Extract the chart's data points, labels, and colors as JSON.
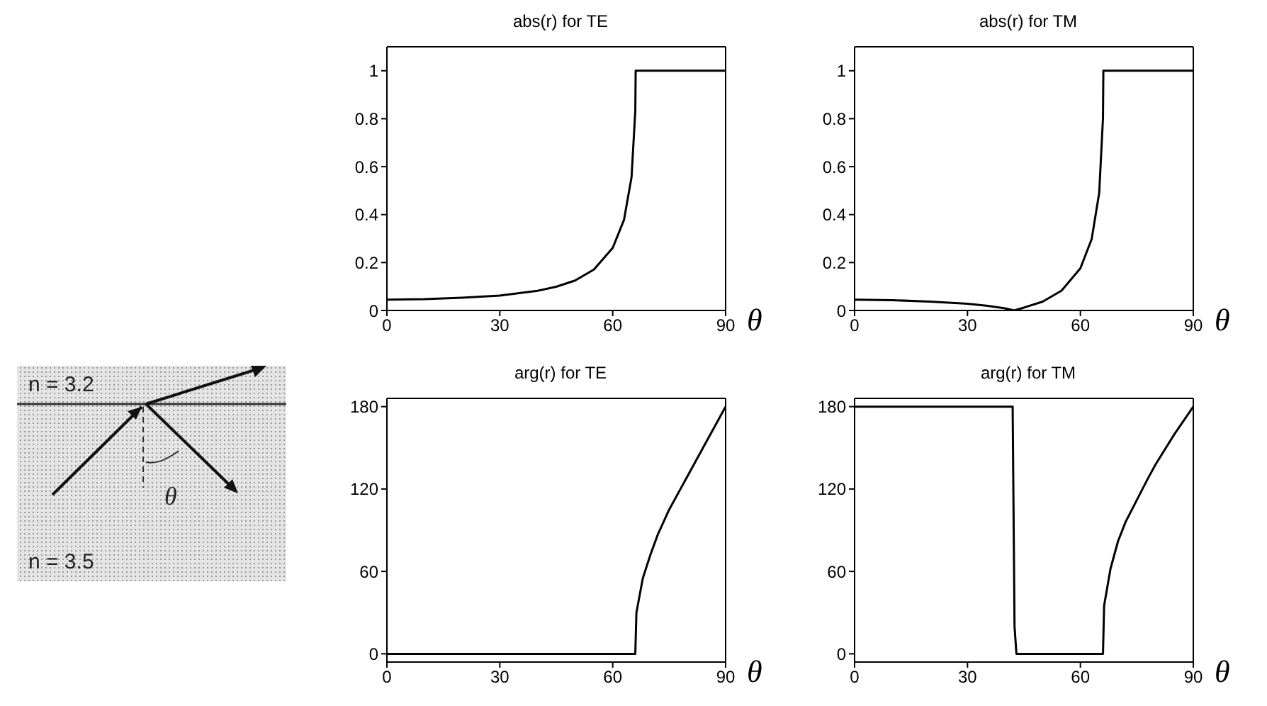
{
  "chart_data": [
    {
      "type": "other",
      "annotations": [
        "n = 3.2",
        "n = 3.5",
        "θ"
      ]
    },
    {
      "type": "line",
      "title": "abs(r) for TE",
      "xlabel": "θ",
      "color": "#000000",
      "xlim": [
        0,
        90
      ],
      "xticks": [
        0,
        30,
        60,
        90
      ],
      "ylim": [
        0,
        1.1
      ],
      "yticks": [
        0,
        0.2,
        0.4,
        0.6,
        0.8,
        1
      ],
      "grid": false,
      "legend": false,
      "x": [
        0,
        10,
        20,
        30,
        40,
        45,
        50,
        55,
        60,
        63,
        65,
        66,
        66.1,
        70,
        80,
        90
      ],
      "values": [
        0.045,
        0.047,
        0.053,
        0.062,
        0.082,
        0.099,
        0.125,
        0.171,
        0.261,
        0.378,
        0.556,
        0.832,
        1,
        1,
        1,
        1
      ]
    },
    {
      "type": "line",
      "title": "abs(r) for TM",
      "xlabel": "θ",
      "color": "#000000",
      "xlim": [
        0,
        90
      ],
      "xticks": [
        0,
        30,
        60,
        90
      ],
      "ylim": [
        0,
        1.1
      ],
      "yticks": [
        0,
        0.2,
        0.4,
        0.6,
        0.8,
        1
      ],
      "grid": false,
      "legend": false,
      "x": [
        0,
        10,
        20,
        30,
        35,
        40,
        42.4,
        45,
        50,
        55,
        60,
        63,
        65,
        66,
        66.1,
        70,
        80,
        90
      ],
      "values": [
        0.045,
        0.043,
        0.037,
        0.028,
        0.02,
        0.009,
        0,
        0.012,
        0.037,
        0.083,
        0.176,
        0.298,
        0.491,
        0.802,
        1,
        1,
        1,
        1
      ]
    },
    {
      "type": "line",
      "title": "arg(r) for TE",
      "xlabel": "θ",
      "color": "#000000",
      "xlim": [
        0,
        90
      ],
      "xticks": [
        0,
        30,
        60,
        90
      ],
      "ylim": [
        -6,
        186
      ],
      "yticks": [
        0,
        60,
        120,
        180
      ],
      "grid": false,
      "legend": false,
      "x": [
        0,
        30,
        60,
        66,
        66.3,
        68,
        70,
        72,
        75,
        78,
        80,
        85,
        90
      ],
      "values": [
        0,
        0,
        0,
        0,
        30,
        55,
        72,
        87,
        105,
        120,
        130,
        155,
        180
      ]
    },
    {
      "type": "line",
      "title": "arg(r) for TM",
      "xlabel": "θ",
      "color": "#000000",
      "xlim": [
        0,
        90
      ],
      "xticks": [
        0,
        30,
        60,
        90
      ],
      "ylim": [
        -6,
        186
      ],
      "yticks": [
        0,
        60,
        120,
        180
      ],
      "grid": false,
      "legend": false,
      "x": [
        0,
        20,
        42,
        42.5,
        43,
        50,
        60,
        66,
        66.3,
        68,
        70,
        72,
        75,
        78,
        80,
        85,
        90
      ],
      "values": [
        180,
        180,
        180,
        20,
        0,
        0,
        0,
        0,
        35,
        62,
        82,
        96,
        112,
        128,
        138,
        160,
        180
      ]
    }
  ]
}
